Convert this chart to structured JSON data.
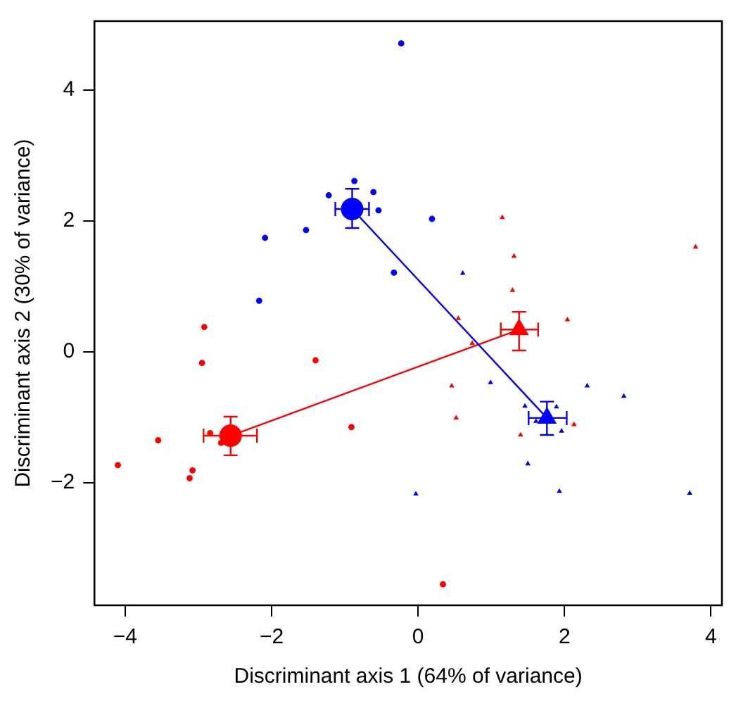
{
  "chart_data": {
    "type": "scatter",
    "xlabel": "Discriminant axis 1 (64% of variance)",
    "ylabel": "Discriminant axis 2 (30% of variance)",
    "xlim": [
      -4.42,
      4.15
    ],
    "ylim": [
      -3.87,
      5.05
    ],
    "xticks": [
      {
        "value": -4,
        "label": "−4"
      },
      {
        "value": -2,
        "label": "−2"
      },
      0,
      2,
      4
    ],
    "yticks": [
      {
        "value": -2,
        "label": "−2"
      },
      0,
      2,
      4
    ],
    "grid": false,
    "legend": false,
    "series": [
      {
        "type": "scatter",
        "marker": "circle",
        "color": "#0000ff",
        "x": [
          -0.23,
          -0.87,
          -1.22,
          -0.61,
          -0.54,
          -1.53,
          -2.09,
          -0.33,
          -2.17,
          0.19
        ],
        "values": [
          4.71,
          2.61,
          2.39,
          2.44,
          2.16,
          1.86,
          1.74,
          1.21,
          0.78,
          2.03
        ]
      },
      {
        "type": "scatter",
        "marker": "circle",
        "color": "#ff0000",
        "x": [
          -2.92,
          -2.95,
          -1.4,
          -3.55,
          -4.1,
          -2.84,
          -2.69,
          -3.08,
          -3.12,
          -0.91,
          0.34
        ],
        "values": [
          0.38,
          -0.17,
          -0.13,
          -1.35,
          -1.73,
          -1.24,
          -1.39,
          -1.81,
          -1.93,
          -1.15,
          -3.55
        ]
      },
      {
        "type": "scatter",
        "marker": "triangle",
        "color": "#ff0000",
        "x": [
          1.15,
          1.31,
          1.29,
          3.79,
          0.55,
          2.04,
          0.74,
          0.46,
          0.52,
          1.4,
          2.13
        ],
        "values": [
          2.05,
          1.46,
          0.94,
          1.6,
          0.51,
          0.49,
          0.13,
          -0.52,
          -1.01,
          -1.27,
          -1.11
        ]
      },
      {
        "type": "scatter",
        "marker": "triangle",
        "color": "#0000ff",
        "x": [
          0.99,
          2.31,
          2.81,
          1.46,
          1.89,
          1.61,
          1.96,
          1.5,
          1.93,
          -0.03,
          3.71,
          0.61
        ],
        "values": [
          -0.47,
          -0.52,
          -0.68,
          -0.83,
          -0.84,
          -1.06,
          -1.21,
          -1.71,
          -2.13,
          -2.17,
          -2.16,
          1.2
        ]
      },
      {
        "type": "line",
        "marker": "none",
        "color": "#0000ff",
        "x": [
          -0.9,
          1.76
        ],
        "values": [
          2.18,
          -1.01
        ]
      },
      {
        "type": "line",
        "marker": "none",
        "color": "#ff0000",
        "x": [
          -2.56,
          1.38
        ],
        "values": [
          -1.28,
          0.34
        ]
      },
      {
        "type": "scatter",
        "marker": "circle",
        "color": "#0000ff",
        "x": [
          -0.9
        ],
        "values": [
          2.18
        ],
        "errors": [
          [
            1.89,
            2.49
          ]
        ],
        "xerrors": [
          [
            -1.13,
            -0.67
          ]
        ]
      },
      {
        "type": "scatter",
        "marker": "circle",
        "color": "#ff0000",
        "x": [
          -2.56
        ],
        "values": [
          -1.28
        ],
        "errors": [
          [
            -1.58,
            -0.99
          ]
        ],
        "xerrors": [
          [
            -2.93,
            -2.2
          ]
        ]
      },
      {
        "type": "scatter",
        "marker": "triangle",
        "color": "#ff0000",
        "x": [
          1.38
        ],
        "values": [
          0.34
        ],
        "errors": [
          [
            0.02,
            0.61
          ]
        ],
        "xerrors": [
          [
            1.13,
            1.64
          ]
        ]
      },
      {
        "type": "scatter",
        "marker": "triangle",
        "color": "#0000ff",
        "x": [
          1.76
        ],
        "values": [
          -1.01
        ],
        "errors": [
          [
            -1.27,
            -0.76
          ]
        ],
        "xerrors": [
          [
            1.51,
            2.03
          ]
        ]
      }
    ]
  }
}
